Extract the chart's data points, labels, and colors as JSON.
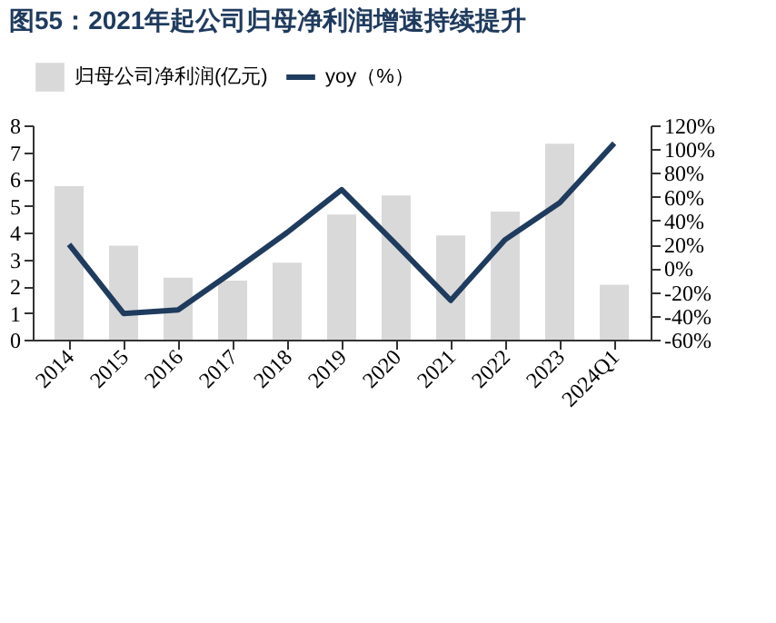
{
  "chart_data": {
    "type": "bar",
    "title": "图55：2021年起公司归母净利润增速持续提升",
    "categories": [
      "2014",
      "2015",
      "2016",
      "2017",
      "2018",
      "2019",
      "2020",
      "2021",
      "2022",
      "2023",
      "2024Q1"
    ],
    "series": [
      {
        "name": "归母公司净利润(亿元)",
        "color": "#d9d9d9",
        "values": [
          5.73,
          3.51,
          2.31,
          2.2,
          2.87,
          4.67,
          5.38,
          3.89,
          4.78,
          7.31,
          2.05
        ]
      },
      {
        "name": "yoy（%）",
        "type": "line",
        "axis": "y2",
        "color": "#1f3b5e",
        "values": [
          20,
          -38,
          -35,
          -3,
          30,
          66,
          20,
          -27,
          24,
          55,
          105
        ]
      }
    ],
    "ylim": [
      0,
      8
    ],
    "yticks": [
      0,
      1,
      2,
      3,
      4,
      5,
      6,
      7,
      8
    ],
    "y2lim": [
      -60,
      120
    ],
    "y2ticks": [
      {
        "value": -60,
        "label": "-60%"
      },
      {
        "value": -40,
        "label": "-40%"
      },
      {
        "value": -20,
        "label": "-20%"
      },
      {
        "value": 0,
        "label": "0%"
      },
      {
        "value": 20,
        "label": "20%"
      },
      {
        "value": 40,
        "label": "40%"
      },
      {
        "value": 60,
        "label": "60%"
      },
      {
        "value": 80,
        "label": "80%"
      },
      {
        "value": 100,
        "label": "100%"
      },
      {
        "value": 120,
        "label": "120%"
      }
    ],
    "legend": "top",
    "grid": false,
    "line_style": "solid",
    "marker": "none"
  }
}
